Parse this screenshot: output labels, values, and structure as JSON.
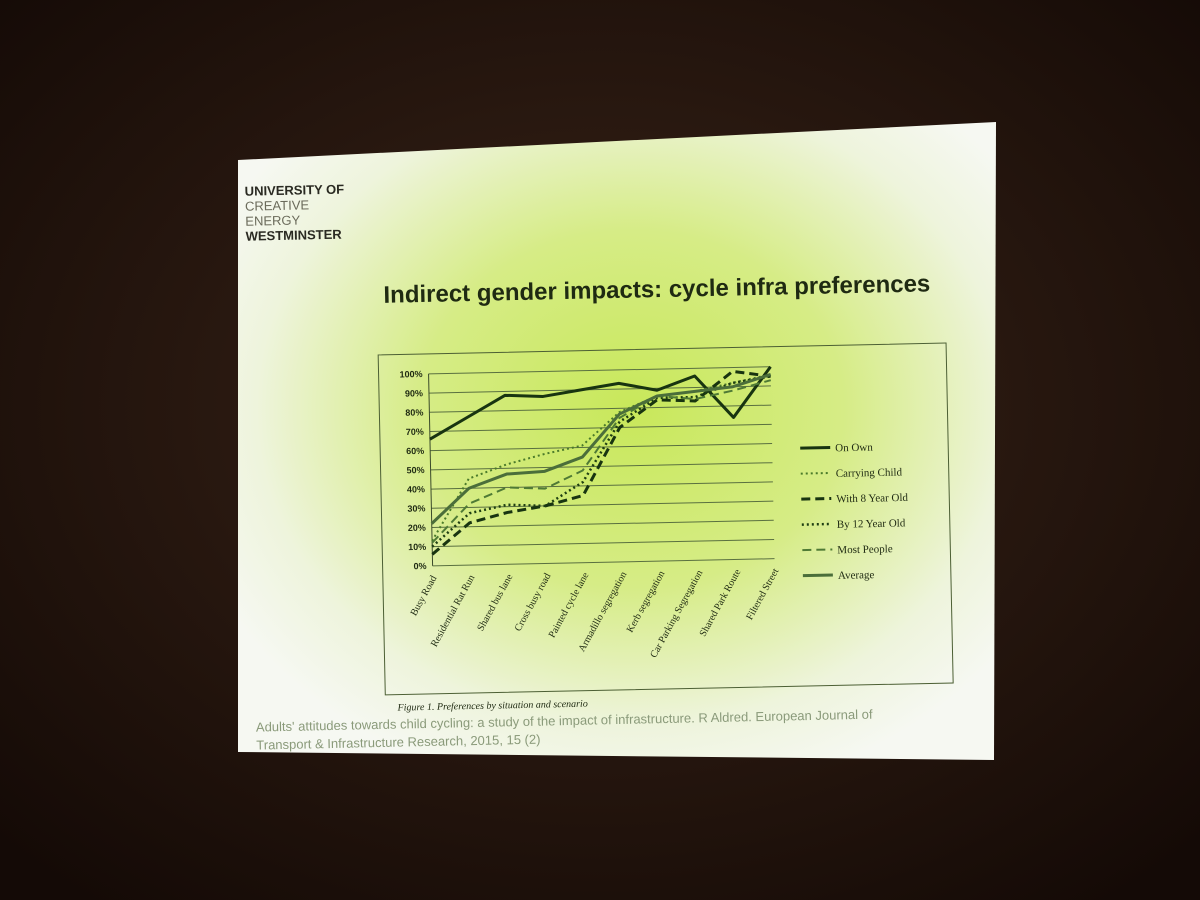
{
  "logo": {
    "lines": [
      "UNIVERSITY OF",
      "CREATIVE",
      "ENERGY",
      "WESTMINSTER"
    ]
  },
  "slide_title": "Indirect gender impacts: cycle infra preferences",
  "citation": [
    "Adults' attitudes towards child cycling: a study of the impact of infrastructure. R Aldred. European Journal of",
    "Transport & Infrastructure Research, 2015, 15 (2)"
  ],
  "chart_data": {
    "type": "line",
    "caption": "Figure 1. Preferences by situation and scenario",
    "categories": [
      "Busy Road",
      "Residential Rat Run",
      "Shared bus lane",
      "Cross busy road",
      "Painted cycle lane",
      "Armadillo segregation",
      "Kerb segregation",
      "Car Parking Segregation",
      "Shared Park Route",
      "Filtered Street"
    ],
    "series": [
      {
        "name": "On Own",
        "color": "#183410",
        "dash": "solid",
        "width": 3,
        "values": [
          66,
          77,
          88,
          87,
          90,
          93,
          89,
          96,
          74,
          100
        ]
      },
      {
        "name": "Carrying Child",
        "color": "#4a7a2a",
        "dash": "dotted",
        "width": 2,
        "values": [
          13,
          45,
          52,
          57,
          61,
          78,
          86,
          88,
          92,
          96
        ]
      },
      {
        "name": "With 8 Year Old",
        "color": "#183410",
        "dash": "dashed",
        "width": 3,
        "values": [
          6,
          22,
          27,
          30,
          35,
          70,
          84,
          83,
          98,
          95
        ]
      },
      {
        "name": "By 12 Year Old",
        "color": "#1e3e12",
        "dash": "dotted",
        "width": 2.5,
        "values": [
          10,
          27,
          31,
          30,
          42,
          73,
          85,
          85,
          92,
          95
        ]
      },
      {
        "name": "Most People",
        "color": "#4f7a35",
        "dash": "dashed",
        "width": 2,
        "values": [
          12,
          32,
          40,
          39,
          48,
          75,
          86,
          84,
          88,
          93
        ]
      },
      {
        "name": "Average",
        "color": "#4b6e3a",
        "dash": "solid",
        "width": 3,
        "values": [
          22,
          40,
          47,
          48,
          55,
          77,
          86,
          88,
          90,
          96
        ]
      }
    ],
    "ylim": [
      0,
      100
    ],
    "yticks": [
      {
        "value": 0,
        "label": "0%"
      },
      {
        "value": 10,
        "label": "10%"
      },
      {
        "value": 20,
        "label": "20%"
      },
      {
        "value": 30,
        "label": "30%"
      },
      {
        "value": 40,
        "label": "40%"
      },
      {
        "value": 50,
        "label": "50%"
      },
      {
        "value": 60,
        "label": "60%"
      },
      {
        "value": 70,
        "label": "70%"
      },
      {
        "value": 80,
        "label": "80%"
      },
      {
        "value": 90,
        "label": "90%"
      },
      {
        "value": 100,
        "label": "100%"
      }
    ],
    "grid": true,
    "legend": "right"
  }
}
